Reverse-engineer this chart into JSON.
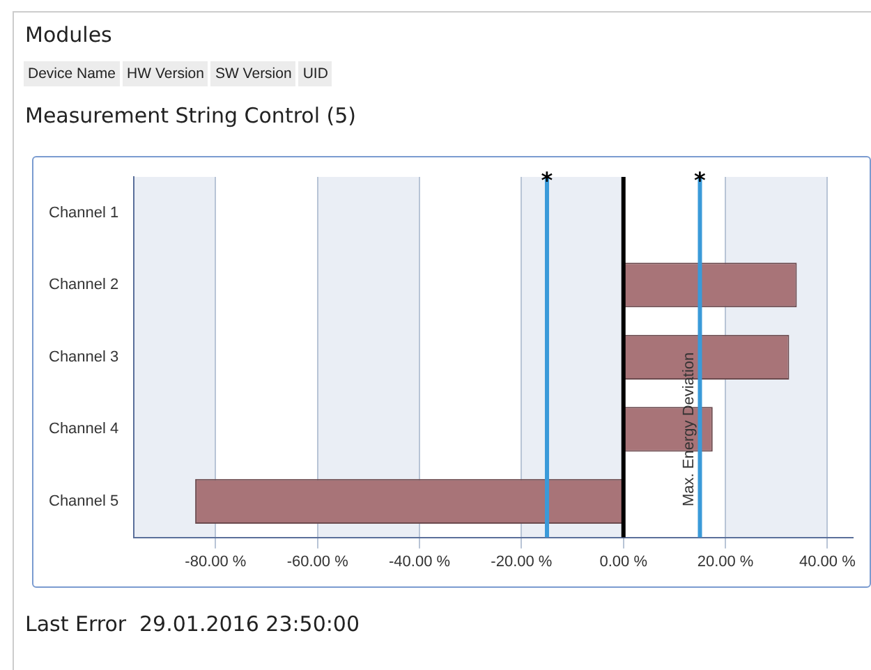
{
  "chart_data": {
    "type": "bar",
    "orientation": "horizontal",
    "title": "Measurement String Control (5)",
    "annotations": [
      "Modules",
      "Device Name",
      "HW Version",
      "SW Version",
      "UID",
      "Last Error",
      "29.01.2016 23:50:00",
      {
        "text": "Max. Energy Deviation",
        "x": 15,
        "y": "Channel 4"
      }
    ],
    "categories": [
      "Channel 1",
      "Channel 2",
      "Channel 3",
      "Channel 4",
      "Channel 5"
    ],
    "values": [
      null,
      34,
      32.5,
      17.5,
      -84
    ],
    "color": "#a87478",
    "xlim": [
      -96,
      45
    ],
    "xticks": [
      {
        "value": -80,
        "label": "-80.00 %"
      },
      {
        "value": -60,
        "label": "-60.00 %"
      },
      {
        "value": -40,
        "label": "-40.00 %"
      },
      {
        "value": -20,
        "label": "-20.00 %"
      },
      {
        "value": 0,
        "label": "0.00 %"
      },
      {
        "value": 20,
        "label": "20.00 %"
      },
      {
        "value": 40,
        "label": "40.00 %"
      }
    ],
    "grid": "x",
    "bands": [
      {
        "axis": "x",
        "from": -96,
        "to": -80,
        "color": "#eaeef5"
      },
      {
        "axis": "x",
        "from": -60,
        "to": -40,
        "color": "#eaeef5"
      },
      {
        "axis": "x",
        "from": -20,
        "to": 0,
        "color": "#eaeef5"
      },
      {
        "axis": "x",
        "from": 20,
        "to": 40,
        "color": "#eaeef5"
      }
    ],
    "ref_lines": [
      {
        "axis": "x",
        "value": 0,
        "color": "#000000"
      },
      {
        "axis": "x",
        "value": -15,
        "label": "*",
        "color": "#3a9ad9"
      },
      {
        "axis": "x",
        "value": 15,
        "label": "*",
        "color": "#3a9ad9"
      }
    ],
    "legend": false
  }
}
